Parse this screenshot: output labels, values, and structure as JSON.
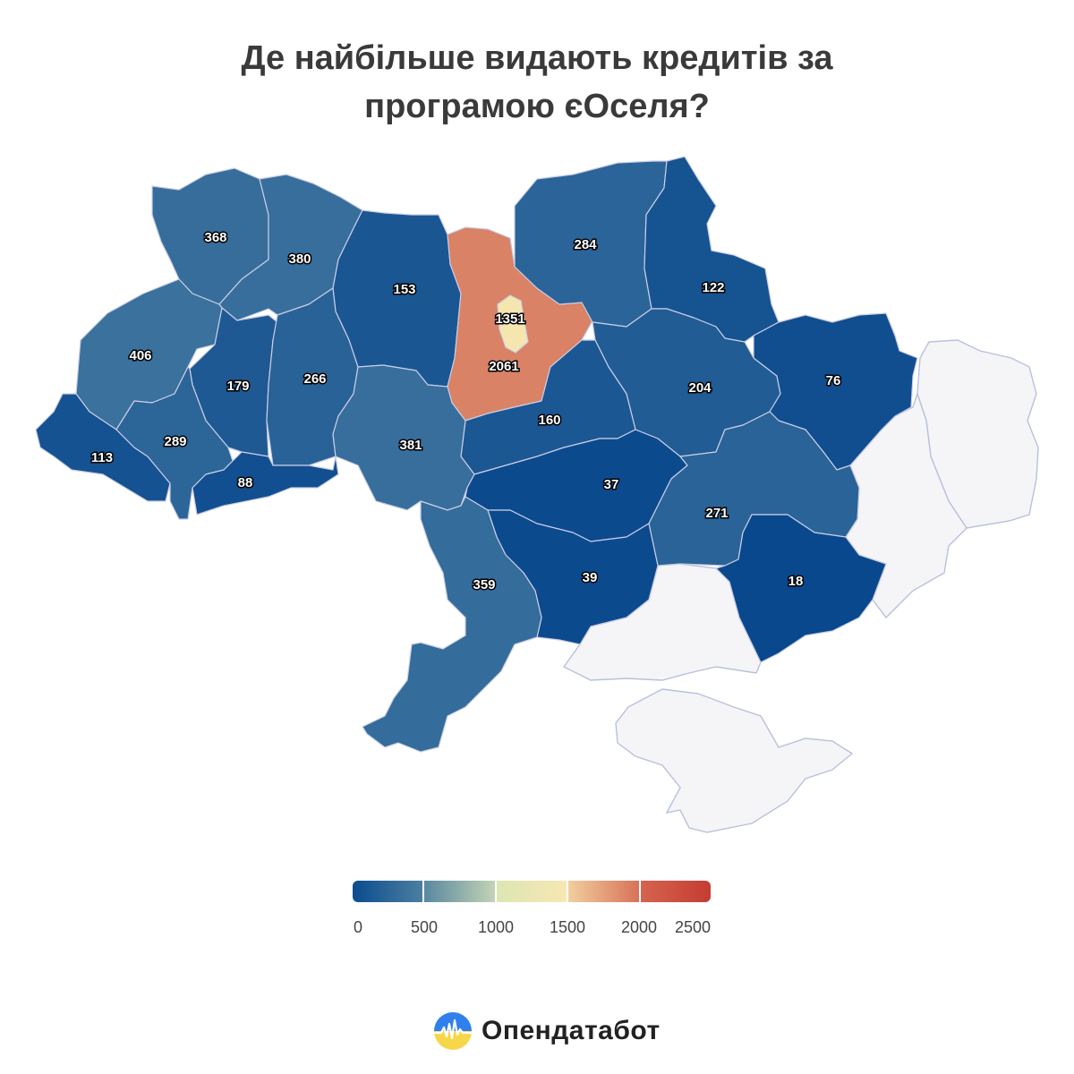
{
  "title": {
    "line1": "Де найбільше видають кредитів за",
    "line2": "програмою єОселя?"
  },
  "brand": {
    "name": "Опендатабот",
    "logo_icon": "opendatabot-logo-icon"
  },
  "colors": {
    "occupied": "#f5f5f7",
    "scale": [
      "#07468c",
      "#5688a6",
      "#f8f3b8",
      "#e2a07c",
      "#c43c32"
    ]
  },
  "legend": {
    "min": 0,
    "max": 2500,
    "ticks": [
      "0",
      "500",
      "1000",
      "1500",
      "2000",
      "2500"
    ],
    "segments": [
      [
        "#0b4c8f",
        "#4c7ea0"
      ],
      [
        "#58889f",
        "#c3d3b6"
      ],
      [
        "#dde6b3",
        "#f7e7b3"
      ],
      [
        "#f1cf9f",
        "#d87258"
      ],
      [
        "#d6644f",
        "#c43c32"
      ]
    ]
  },
  "chart_data": {
    "type": "choropleth",
    "regions": [
      {
        "id": "volyn",
        "value": 368
      },
      {
        "id": "rivne",
        "value": 380
      },
      {
        "id": "zhytomyr",
        "value": 153
      },
      {
        "id": "kyiv-oblast",
        "value": 2061
      },
      {
        "id": "kyiv-city",
        "value": 1351
      },
      {
        "id": "chernihiv",
        "value": 284
      },
      {
        "id": "sumy",
        "value": 122
      },
      {
        "id": "lviv",
        "value": 406
      },
      {
        "id": "ternopil",
        "value": 179
      },
      {
        "id": "khmelnytskyi",
        "value": 266
      },
      {
        "id": "poltava",
        "value": 204
      },
      {
        "id": "kharkiv",
        "value": 76
      },
      {
        "id": "cherkasy",
        "value": 160
      },
      {
        "id": "vinnytsia",
        "value": 381
      },
      {
        "id": "zakarpattia",
        "value": 113
      },
      {
        "id": "ivano-frankivsk",
        "value": 289
      },
      {
        "id": "chernivtsi",
        "value": 88
      },
      {
        "id": "kirovohrad",
        "value": 37
      },
      {
        "id": "dnipropetrovsk",
        "value": 271
      },
      {
        "id": "mykolaiv",
        "value": 39
      },
      {
        "id": "zaporizhzhia",
        "value": 18
      },
      {
        "id": "odesa",
        "value": 359
      }
    ],
    "unshaded": [
      "luhansk",
      "donetsk",
      "kherson",
      "crimea"
    ]
  }
}
